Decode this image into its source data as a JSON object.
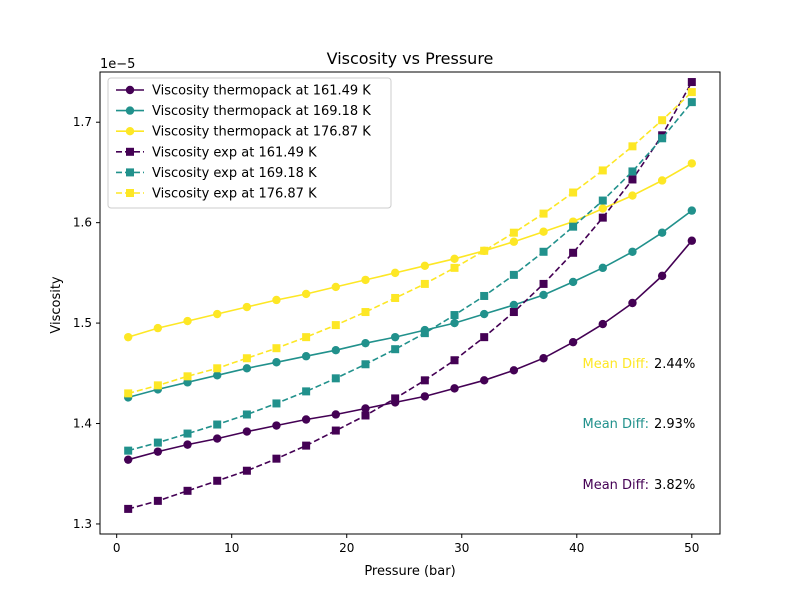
{
  "chart_data": {
    "type": "line",
    "title": "Viscosity vs Pressure",
    "xlabel": "Pressure (bar)",
    "ylabel": "Viscosity",
    "offset_label": "1e−5",
    "xlim": [
      -1.45,
      52.45
    ],
    "ylim": [
      1.29,
      1.75
    ],
    "xticks": [
      0,
      10,
      20,
      30,
      40,
      50
    ],
    "yticks": [
      1.3,
      1.4,
      1.5,
      1.6,
      1.7
    ],
    "grid": false,
    "legend_position": "top-left",
    "x": [
      1.0,
      3.58,
      6.16,
      8.74,
      11.32,
      13.89,
      16.47,
      19.05,
      21.63,
      24.21,
      26.79,
      29.37,
      31.95,
      34.53,
      37.11,
      39.68,
      42.26,
      44.84,
      47.42,
      50.0
    ],
    "series": [
      {
        "name": "Viscosity thermopack at 161.49 K",
        "color": "#440154",
        "marker": "o",
        "linestyle": "solid",
        "values": [
          1.364,
          1.372,
          1.379,
          1.385,
          1.392,
          1.398,
          1.404,
          1.409,
          1.415,
          1.421,
          1.427,
          1.435,
          1.443,
          1.453,
          1.465,
          1.481,
          1.499,
          1.52,
          1.547,
          1.582
        ]
      },
      {
        "name": "Viscosity thermopack at 169.18 K",
        "color": "#21918c",
        "marker": "o",
        "linestyle": "solid",
        "values": [
          1.426,
          1.434,
          1.441,
          1.448,
          1.455,
          1.461,
          1.467,
          1.473,
          1.48,
          1.486,
          1.493,
          1.5,
          1.509,
          1.518,
          1.528,
          1.541,
          1.555,
          1.571,
          1.59,
          1.612
        ]
      },
      {
        "name": "Viscosity thermopack at 176.87 K",
        "color": "#fde725",
        "marker": "o",
        "linestyle": "solid",
        "values": [
          1.486,
          1.495,
          1.502,
          1.509,
          1.516,
          1.523,
          1.529,
          1.536,
          1.543,
          1.55,
          1.557,
          1.564,
          1.572,
          1.581,
          1.591,
          1.601,
          1.614,
          1.627,
          1.642,
          1.659
        ]
      },
      {
        "name": "Viscosity exp at 161.49 K",
        "color": "#440154",
        "marker": "s",
        "linestyle": "dashed",
        "values": [
          1.315,
          1.323,
          1.333,
          1.343,
          1.353,
          1.365,
          1.378,
          1.393,
          1.408,
          1.425,
          1.443,
          1.463,
          1.486,
          1.511,
          1.539,
          1.57,
          1.605,
          1.643,
          1.687,
          1.74
        ]
      },
      {
        "name": "Viscosity exp at 169.18 K",
        "color": "#21918c",
        "marker": "s",
        "linestyle": "dashed",
        "values": [
          1.373,
          1.381,
          1.39,
          1.399,
          1.409,
          1.42,
          1.432,
          1.445,
          1.459,
          1.474,
          1.49,
          1.508,
          1.527,
          1.548,
          1.571,
          1.596,
          1.622,
          1.651,
          1.684,
          1.72
        ]
      },
      {
        "name": "Viscosity exp at 176.87 K",
        "color": "#fde725",
        "marker": "s",
        "linestyle": "dashed",
        "values": [
          1.43,
          1.438,
          1.447,
          1.455,
          1.465,
          1.475,
          1.486,
          1.498,
          1.511,
          1.525,
          1.539,
          1.555,
          1.572,
          1.59,
          1.609,
          1.63,
          1.652,
          1.676,
          1.702,
          1.73
        ]
      }
    ],
    "annotations": [
      {
        "label": "Mean Diff:",
        "value": "3.82%",
        "color": "#440154"
      },
      {
        "label": "Mean Diff:",
        "value": "2.93%",
        "color": "#21918c"
      },
      {
        "label": "Mean Diff:",
        "value": "2.44%",
        "color": "#fde725"
      }
    ]
  }
}
